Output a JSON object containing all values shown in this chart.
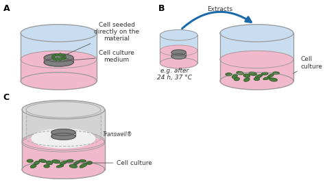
{
  "fig_width": 4.74,
  "fig_height": 2.66,
  "dpi": 100,
  "bg_color": "#ffffff",
  "label_A": "A",
  "label_B": "B",
  "label_C": "C",
  "text_cell_seeded": "Cell seeded\ndirectly on the\nmaterial",
  "text_cell_culture_medium": "Cell culture\nmedium",
  "text_extracts": "Extracts",
  "text_eg_after": "e.g. after\n24 h, 37 °C",
  "text_cell_culture_B": "Cell\nculture",
  "text_transwell": "Transwell®",
  "text_cell_culture_C": "Cell culture",
  "wall_color": "#999999",
  "fill_blue": "#c8ddf0",
  "fill_pink": "#f2b8cc",
  "fill_pink_light": "#f8d0de",
  "disk_gray": "#808080",
  "disk_edge": "#555555",
  "cell_fill": "#4a7c3f",
  "cell_edge": "#2d5225",
  "arrow_blue": "#1a6aaa",
  "trans_gray": "#b0b0b0",
  "trans_fill": "#d8d8d8",
  "trans_inner": "#e8e8e8",
  "line_color": "#555555",
  "text_color": "#333333",
  "font_label": 9,
  "font_text": 6.5
}
